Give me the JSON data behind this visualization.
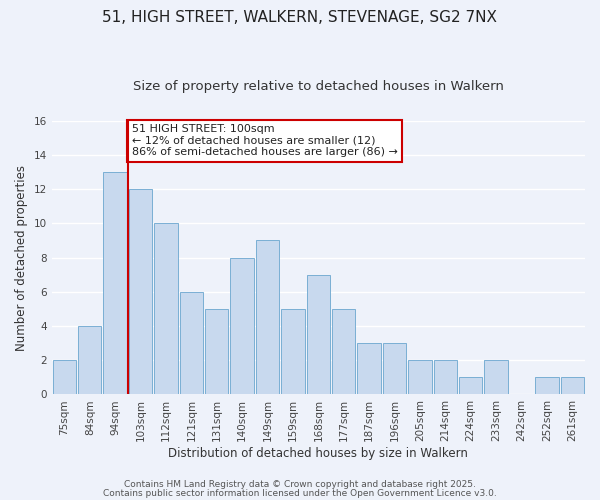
{
  "title": "51, HIGH STREET, WALKERN, STEVENAGE, SG2 7NX",
  "subtitle": "Size of property relative to detached houses in Walkern",
  "xlabel": "Distribution of detached houses by size in Walkern",
  "ylabel": "Number of detached properties",
  "bar_color": "#c8d9ee",
  "bar_edge_color": "#7aafd4",
  "background_color": "#eef2fa",
  "grid_color": "#ffffff",
  "categories": [
    "75sqm",
    "84sqm",
    "94sqm",
    "103sqm",
    "112sqm",
    "121sqm",
    "131sqm",
    "140sqm",
    "149sqm",
    "159sqm",
    "168sqm",
    "177sqm",
    "187sqm",
    "196sqm",
    "205sqm",
    "214sqm",
    "224sqm",
    "233sqm",
    "242sqm",
    "252sqm",
    "261sqm"
  ],
  "values": [
    2,
    4,
    13,
    12,
    10,
    6,
    5,
    8,
    9,
    5,
    7,
    5,
    3,
    3,
    2,
    2,
    1,
    2,
    0,
    1,
    1
  ],
  "ylim": [
    0,
    16
  ],
  "yticks": [
    0,
    2,
    4,
    6,
    8,
    10,
    12,
    14,
    16
  ],
  "vline_x": 2.5,
  "vline_color": "#cc0000",
  "annotation_text": "51 HIGH STREET: 100sqm\n← 12% of detached houses are smaller (12)\n86% of semi-detached houses are larger (86) →",
  "annotation_box_color": "#ffffff",
  "annotation_box_edge_color": "#cc0000",
  "footer_line1": "Contains HM Land Registry data © Crown copyright and database right 2025.",
  "footer_line2": "Contains public sector information licensed under the Open Government Licence v3.0.",
  "title_fontsize": 11,
  "subtitle_fontsize": 9.5,
  "axis_label_fontsize": 8.5,
  "tick_fontsize": 7.5,
  "annotation_fontsize": 8,
  "footer_fontsize": 6.5
}
